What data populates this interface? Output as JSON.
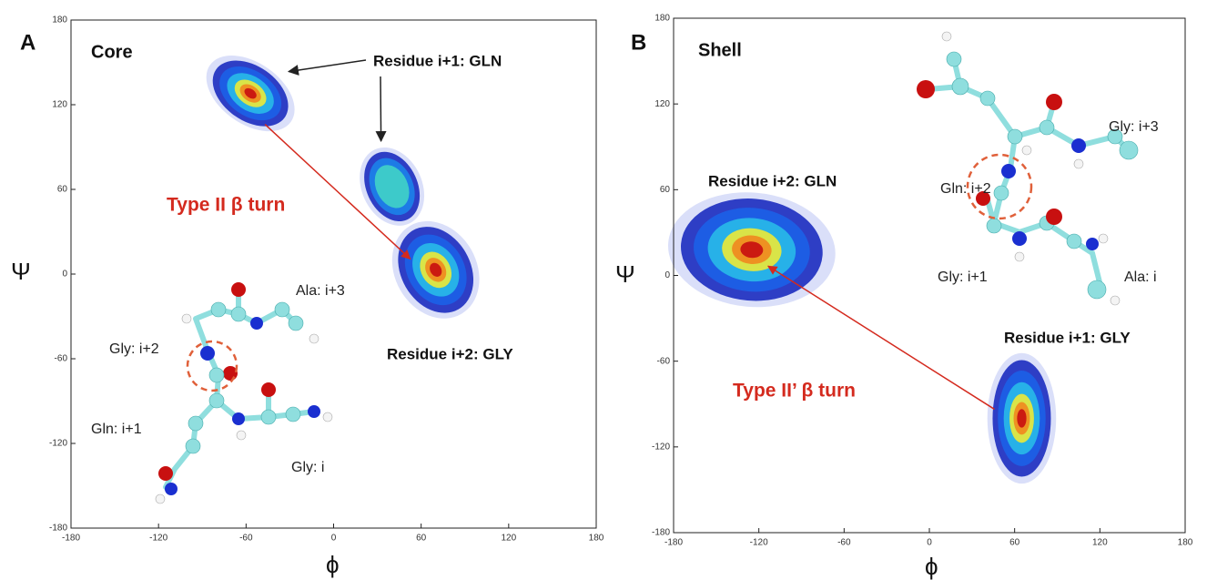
{
  "chart_data": [
    {
      "type": "density",
      "panel": "A",
      "title": "Core",
      "xlabel": "ϕ",
      "ylabel": "Ψ",
      "xlim": [
        -180,
        180
      ],
      "ylim": [
        -180,
        180
      ],
      "xticks": [
        -180,
        -120,
        -60,
        0,
        60,
        120,
        180
      ],
      "yticks": [
        -180,
        -120,
        -60,
        0,
        60,
        120,
        180
      ],
      "clusters": [
        {
          "x": -57,
          "y": 128
        },
        {
          "x": 40,
          "y": 62
        },
        {
          "x": 70,
          "y": 3
        }
      ],
      "annotations": [
        "Residue i+1: GLN",
        "Type II β turn",
        "Residue i+2: GLY"
      ],
      "molecule_labels": [
        "Ala: i+3",
        "Gly: i+2",
        "Gln: i+1",
        "Gly: i"
      ]
    },
    {
      "type": "density",
      "panel": "B",
      "title": "Shell",
      "xlabel": "ϕ",
      "ylabel": "Ψ",
      "xlim": [
        -180,
        180
      ],
      "ylim": [
        -180,
        180
      ],
      "xticks": [
        -180,
        -120,
        -60,
        0,
        60,
        120,
        180
      ],
      "yticks": [
        -180,
        -120,
        -60,
        0,
        60,
        120,
        180
      ],
      "clusters": [
        {
          "x": -125,
          "y": 18
        },
        {
          "x": 65,
          "y": -100
        }
      ],
      "annotations": [
        "Residue i+2: GLN",
        "Residue i+1: GLY",
        "Type II’ β turn"
      ],
      "molecule_labels": [
        "Gly: i+3",
        "Gln: i+2",
        "Gly: i+1",
        "Ala: i"
      ]
    }
  ]
}
